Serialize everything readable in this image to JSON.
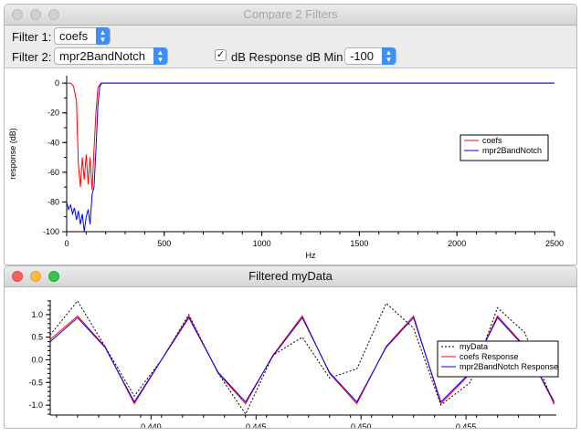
{
  "window1": {
    "title": "Compare 2 Filters",
    "filter1_label": "Filter 1:",
    "filter1_value": "coefs",
    "filter2_label": "Filter 2:",
    "filter2_value": "mpr2BandNotch",
    "db_response_checked": true,
    "db_response_label": "dB Response",
    "db_min_label": "dB Min",
    "db_min_value": "-100"
  },
  "window2": {
    "title": "Filtered myData"
  },
  "colors": {
    "red": "#ff0000",
    "blue": "#0000ff",
    "black": "#000000"
  },
  "chart_data": [
    {
      "type": "line",
      "xlabel": "Hz",
      "ylabel": "response (dB)",
      "xlim": [
        0,
        2500
      ],
      "ylim": [
        -100,
        5
      ],
      "x_ticks": [
        "0",
        "500",
        "1000",
        "1500",
        "2000",
        "2500"
      ],
      "y_ticks": [
        "0",
        "-20",
        "-40",
        "-60",
        "-80",
        "-100"
      ],
      "legend_position": "right",
      "series": [
        {
          "name": "coefs",
          "color": "#ff0000",
          "x": [
            0,
            20,
            35,
            50,
            60,
            70,
            80,
            90,
            100,
            110,
            120,
            130,
            140,
            150,
            160,
            175,
            200,
            500,
            1000,
            1500,
            2000,
            2500
          ],
          "y": [
            0,
            0,
            -2,
            -12,
            -55,
            -70,
            -50,
            -65,
            -48,
            -68,
            -50,
            -72,
            -45,
            -20,
            -3,
            0,
            0,
            0,
            0,
            0,
            0,
            0
          ]
        },
        {
          "name": "mpr2BandNotch",
          "color": "#0000ff",
          "x": [
            0,
            10,
            20,
            30,
            40,
            50,
            60,
            70,
            80,
            90,
            100,
            110,
            120,
            130,
            140,
            150,
            160,
            170,
            180,
            200,
            500,
            1000,
            1500,
            2000,
            2500
          ],
          "y": [
            -80,
            -85,
            -82,
            -88,
            -84,
            -92,
            -86,
            -95,
            -88,
            -100,
            -90,
            -85,
            -95,
            -75,
            -70,
            -45,
            -15,
            -2,
            0,
            0,
            0,
            0,
            0,
            0,
            0
          ]
        }
      ]
    },
    {
      "type": "line",
      "xlim": [
        0.4352,
        0.4593
      ],
      "ylim": [
        -1.22,
        1.32
      ],
      "x_ticks": [
        "0.440",
        "0.445",
        "0.450",
        "0.455"
      ],
      "y_ticks": [
        "1.0",
        "0.5",
        "0.0",
        "-0.5",
        "-1.0"
      ],
      "legend_position": "right",
      "series": [
        {
          "name": "myData",
          "color": "#000000",
          "dash": true,
          "x": [
            0.4352,
            0.4365,
            0.4378,
            0.4392,
            0.4405,
            0.4418,
            0.4432,
            0.4445,
            0.4458,
            0.4472,
            0.4485,
            0.4498,
            0.4512,
            0.4525,
            0.4538,
            0.4552,
            0.4565,
            0.4578,
            0.4592
          ],
          "y": [
            0.55,
            1.3,
            0.3,
            -0.8,
            0.0,
            1.0,
            -0.3,
            -1.2,
            0.1,
            0.5,
            -0.4,
            -0.2,
            1.25,
            0.7,
            -1.0,
            -0.5,
            1.15,
            0.6,
            -1.0
          ]
        },
        {
          "name": "coefs Response",
          "color": "#ff0000",
          "x": [
            0.4352,
            0.4365,
            0.4378,
            0.4392,
            0.4405,
            0.4418,
            0.4432,
            0.4445,
            0.4458,
            0.4472,
            0.4485,
            0.4498,
            0.4512,
            0.4525,
            0.4538,
            0.4552,
            0.4565,
            0.4578,
            0.4592
          ],
          "y": [
            0.45,
            0.97,
            0.3,
            -0.97,
            0.0,
            0.97,
            -0.3,
            -0.97,
            0.1,
            0.97,
            -0.3,
            -0.97,
            0.3,
            0.97,
            -0.97,
            -0.3,
            0.97,
            0.3,
            -0.97
          ]
        },
        {
          "name": "mpr2BandNotch Response",
          "color": "#0000ff",
          "x": [
            0.4352,
            0.4365,
            0.4378,
            0.4392,
            0.4405,
            0.4418,
            0.4432,
            0.4445,
            0.4458,
            0.4472,
            0.4485,
            0.4498,
            0.4512,
            0.4525,
            0.4538,
            0.4552,
            0.4565,
            0.4578,
            0.4592
          ],
          "y": [
            0.4,
            0.93,
            0.28,
            -0.93,
            0.0,
            0.93,
            -0.28,
            -0.93,
            0.08,
            0.93,
            -0.28,
            -0.93,
            0.28,
            0.93,
            -0.93,
            -0.28,
            0.93,
            0.28,
            -0.93
          ]
        }
      ]
    }
  ]
}
